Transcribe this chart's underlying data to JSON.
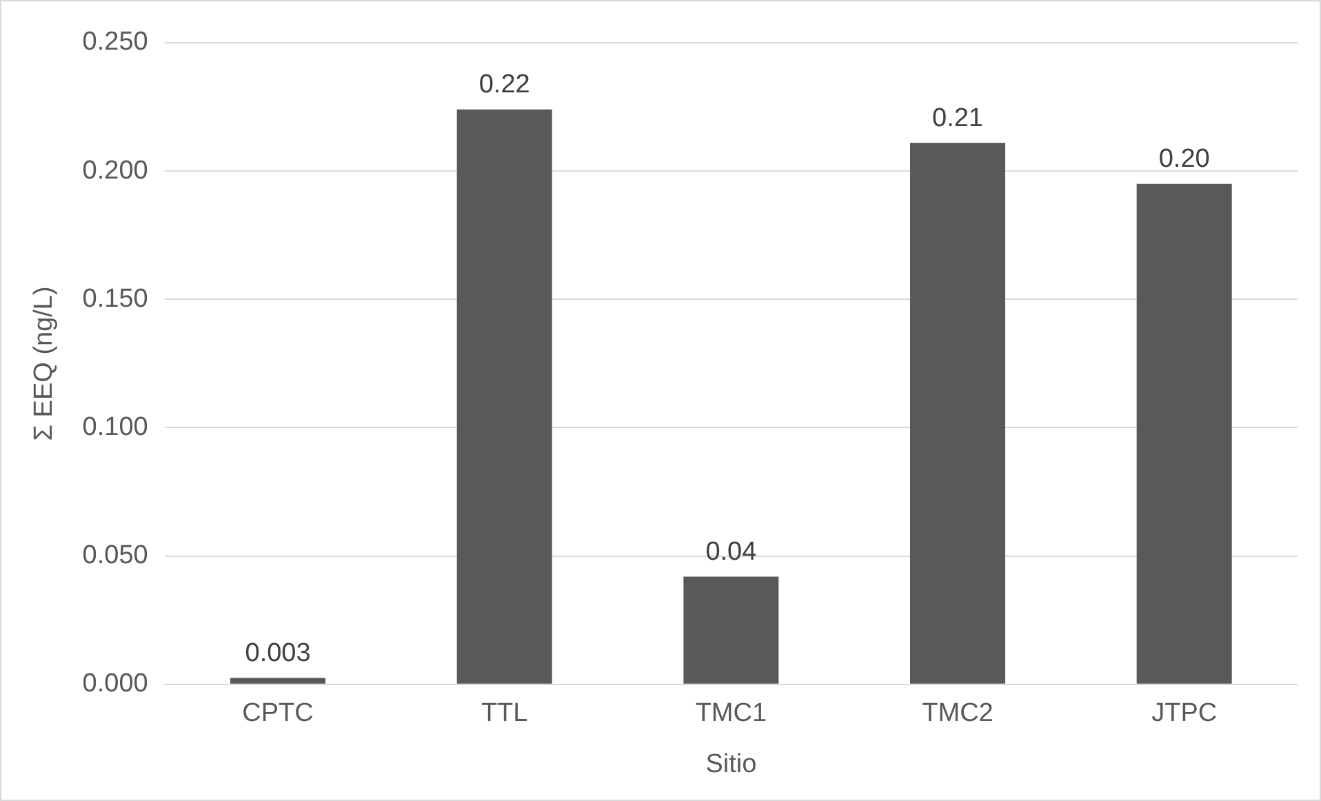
{
  "chart_data": {
    "type": "bar",
    "xlabel": "Sitio",
    "ylabel": "Σ EEQ (ng/L)",
    "categories": [
      "CPTC",
      "TTL",
      "TMC1",
      "TMC2",
      "JTPC"
    ],
    "values": [
      0.0025,
      0.224,
      0.042,
      0.211,
      0.195
    ],
    "value_labels": [
      "0.003",
      "0.22",
      "0.04",
      "0.21",
      "0.20"
    ],
    "color": "#595959",
    "ylim": [
      0,
      0.25
    ],
    "yticks": [
      {
        "value": 0,
        "label": "0.000"
      },
      {
        "value": 0.05,
        "label": "0.050"
      },
      {
        "value": 0.1,
        "label": "0.100"
      },
      {
        "value": 0.15,
        "label": "0.150"
      },
      {
        "value": 0.2,
        "label": "0.200"
      },
      {
        "value": 0.25,
        "label": "0.250"
      }
    ],
    "grid": "y"
  }
}
